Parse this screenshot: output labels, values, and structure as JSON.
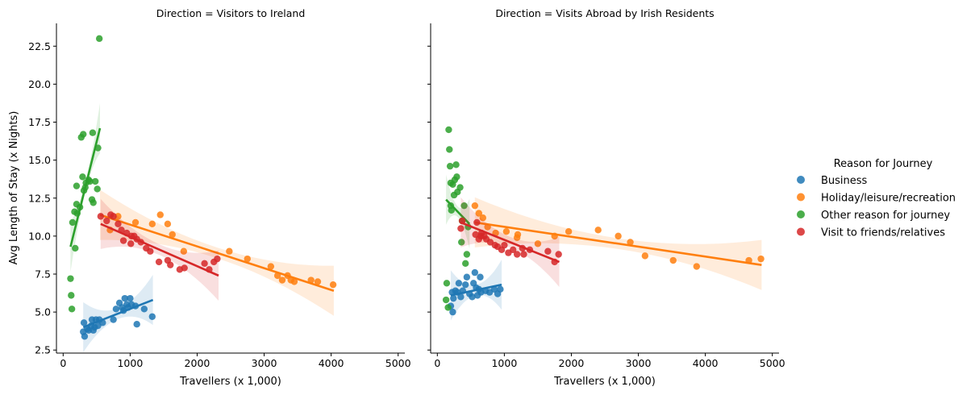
{
  "chart_data": {
    "type": "scatter",
    "legend": {
      "title": "Reason for Journey",
      "placement": "right",
      "entries": [
        {
          "label": "Business",
          "color": "#1f77b4"
        },
        {
          "label": "Holiday/leisure/recreation",
          "color": "#ff7f0e"
        },
        {
          "label": "Other reason for journey",
          "color": "#2ca02c"
        },
        {
          "label": "Visit to friends/relatives",
          "color": "#d62728"
        }
      ]
    },
    "xlim": [
      -100,
      5100
    ],
    "ylim": [
      2.3,
      24.0
    ],
    "xticks": [
      0,
      1000,
      2000,
      3000,
      4000,
      5000
    ],
    "yticks": [
      2.5,
      5.0,
      7.5,
      10.0,
      12.5,
      15.0,
      17.5,
      20.0,
      22.5
    ],
    "ylabel": "Avg Length of Stay (x Nights)",
    "panels": [
      {
        "title": "Direction = Visitors to Ireland",
        "xlabel": "Travellers (x 1,000)",
        "series": [
          {
            "name": "Business",
            "points": [
              [
                300,
                3.7
              ],
              [
                310,
                4.3
              ],
              [
                320,
                3.4
              ],
              [
                360,
                3.9
              ],
              [
                380,
                3.8
              ],
              [
                420,
                4.1
              ],
              [
                430,
                4.5
              ],
              [
                450,
                3.8
              ],
              [
                470,
                4.0
              ],
              [
                490,
                4.5
              ],
              [
                520,
                4.1
              ],
              [
                540,
                4.5
              ],
              [
                590,
                4.3
              ],
              [
                750,
                4.5
              ],
              [
                790,
                5.2
              ],
              [
                840,
                5.6
              ],
              [
                880,
                5.3
              ],
              [
                900,
                5.1
              ],
              [
                920,
                5.9
              ],
              [
                950,
                5.5
              ],
              [
                970,
                5.3
              ],
              [
                1000,
                5.9
              ],
              [
                1020,
                5.5
              ],
              [
                1080,
                5.4
              ],
              [
                1100,
                4.2
              ],
              [
                1210,
                5.2
              ],
              [
                1330,
                4.7
              ]
            ],
            "fit": [
              [
                300,
                4.0
              ],
              [
                1340,
                5.8
              ]
            ]
          },
          {
            "name": "Holiday/leisure/recreation",
            "points": [
              [
                700,
                10.4
              ],
              [
                820,
                11.3
              ],
              [
                1080,
                10.9
              ],
              [
                1330,
                10.8
              ],
              [
                1450,
                11.4
              ],
              [
                1560,
                10.8
              ],
              [
                1630,
                10.1
              ],
              [
                1800,
                9.0
              ],
              [
                2480,
                9.0
              ],
              [
                2750,
                8.5
              ],
              [
                3100,
                8.0
              ],
              [
                3200,
                7.4
              ],
              [
                3270,
                7.1
              ],
              [
                3350,
                7.4
              ],
              [
                3400,
                7.1
              ],
              [
                3450,
                7.0
              ],
              [
                3700,
                7.1
              ],
              [
                3800,
                7.0
              ],
              [
                4030,
                6.8
              ]
            ],
            "fit": [
              [
                550,
                11.4
              ],
              [
                4040,
                6.4
              ]
            ]
          },
          {
            "name": "Other reason for journey",
            "points": [
              [
                110,
                7.2
              ],
              [
                120,
                6.1
              ],
              [
                130,
                5.2
              ],
              [
                140,
                10.9
              ],
              [
                170,
                11.6
              ],
              [
                180,
                9.2
              ],
              [
                200,
                12.1
              ],
              [
                200,
                13.3
              ],
              [
                210,
                11.5
              ],
              [
                250,
                11.9
              ],
              [
                270,
                16.5
              ],
              [
                290,
                13.9
              ],
              [
                300,
                16.7
              ],
              [
                310,
                13.0
              ],
              [
                330,
                13.2
              ],
              [
                340,
                13.5
              ],
              [
                380,
                13.7
              ],
              [
                400,
                13.6
              ],
              [
                440,
                16.8
              ],
              [
                430,
                12.4
              ],
              [
                450,
                12.2
              ],
              [
                480,
                13.6
              ],
              [
                510,
                13.1
              ],
              [
                520,
                15.8
              ],
              [
                540,
                23.0
              ]
            ],
            "fit": [
              [
                110,
                9.3
              ],
              [
                550,
                17.1
              ]
            ]
          },
          {
            "name": "Visit to friends/relatives",
            "points": [
              [
                560,
                11.3
              ],
              [
                650,
                11.0
              ],
              [
                710,
                11.4
              ],
              [
                750,
                11.3
              ],
              [
                820,
                10.8
              ],
              [
                870,
                10.4
              ],
              [
                900,
                9.7
              ],
              [
                950,
                10.2
              ],
              [
                1010,
                9.5
              ],
              [
                1020,
                10.0
              ],
              [
                1060,
                10.0
              ],
              [
                1100,
                9.8
              ],
              [
                1160,
                9.6
              ],
              [
                1240,
                9.2
              ],
              [
                1300,
                9.0
              ],
              [
                1430,
                8.3
              ],
              [
                1560,
                8.4
              ],
              [
                1600,
                8.1
              ],
              [
                1740,
                7.8
              ],
              [
                1810,
                7.9
              ],
              [
                2110,
                8.2
              ],
              [
                2180,
                7.8
              ],
              [
                2250,
                8.3
              ],
              [
                2300,
                8.5
              ]
            ],
            "fit": [
              [
                560,
                10.8
              ],
              [
                2320,
                7.4
              ]
            ]
          }
        ]
      },
      {
        "title": "Direction = Visits Abroad by Irish Residents",
        "xlabel": "Travellers (x 1,000)",
        "series": [
          {
            "name": "Business",
            "points": [
              [
                200,
                5.4
              ],
              [
                220,
                6.3
              ],
              [
                230,
                5.0
              ],
              [
                240,
                5.9
              ],
              [
                270,
                6.4
              ],
              [
                300,
                6.3
              ],
              [
                320,
                6.9
              ],
              [
                350,
                6.0
              ],
              [
                380,
                6.4
              ],
              [
                420,
                6.8
              ],
              [
                440,
                7.3
              ],
              [
                480,
                6.2
              ],
              [
                520,
                6.0
              ],
              [
                540,
                6.9
              ],
              [
                560,
                7.6
              ],
              [
                580,
                6.6
              ],
              [
                600,
                6.1
              ],
              [
                620,
                6.5
              ],
              [
                640,
                7.3
              ],
              [
                650,
                6.3
              ],
              [
                720,
                6.4
              ],
              [
                780,
                6.3
              ],
              [
                850,
                6.5
              ],
              [
                900,
                6.2
              ],
              [
                940,
                6.5
              ]
            ],
            "fit": [
              [
                200,
                6.1
              ],
              [
                960,
                6.8
              ]
            ]
          },
          {
            "name": "Holiday/leisure/recreation",
            "points": [
              [
                560,
                12.0
              ],
              [
                620,
                11.5
              ],
              [
                680,
                11.2
              ],
              [
                750,
                10.6
              ],
              [
                870,
                10.2
              ],
              [
                1030,
                10.3
              ],
              [
                1190,
                9.9
              ],
              [
                1200,
                10.1
              ],
              [
                1500,
                9.5
              ],
              [
                1750,
                10.0
              ],
              [
                1960,
                10.3
              ],
              [
                2400,
                10.4
              ],
              [
                2700,
                10.0
              ],
              [
                2880,
                9.6
              ],
              [
                3100,
                8.7
              ],
              [
                3520,
                8.4
              ],
              [
                3870,
                8.0
              ],
              [
                4650,
                8.4
              ],
              [
                4830,
                8.5
              ]
            ],
            "fit": [
              [
                560,
                10.9
              ],
              [
                4840,
                8.1
              ]
            ]
          },
          {
            "name": "Other reason for journey",
            "points": [
              [
                130,
                5.8
              ],
              [
                140,
                6.9
              ],
              [
                160,
                5.3
              ],
              [
                170,
                17.0
              ],
              [
                180,
                15.7
              ],
              [
                190,
                14.6
              ],
              [
                200,
                13.5
              ],
              [
                200,
                12.0
              ],
              [
                210,
                11.7
              ],
              [
                230,
                13.4
              ],
              [
                250,
                12.7
              ],
              [
                260,
                13.7
              ],
              [
                280,
                14.7
              ],
              [
                290,
                13.9
              ],
              [
                300,
                12.9
              ],
              [
                340,
                13.2
              ],
              [
                360,
                9.6
              ],
              [
                370,
                11.0
              ],
              [
                400,
                12.0
              ],
              [
                420,
                8.2
              ],
              [
                440,
                8.8
              ],
              [
                460,
                10.6
              ]
            ],
            "fit": [
              [
                130,
                12.4
              ],
              [
                480,
                10.8
              ]
            ]
          },
          {
            "name": "Visit to friends/relatives",
            "points": [
              [
                350,
                10.5
              ],
              [
                370,
                11.0
              ],
              [
                570,
                10.1
              ],
              [
                590,
                10.9
              ],
              [
                620,
                9.8
              ],
              [
                650,
                10.0
              ],
              [
                660,
                10.2
              ],
              [
                700,
                10.0
              ],
              [
                730,
                9.8
              ],
              [
                790,
                9.6
              ],
              [
                860,
                9.4
              ],
              [
                900,
                9.3
              ],
              [
                960,
                9.1
              ],
              [
                1000,
                9.4
              ],
              [
                1060,
                8.9
              ],
              [
                1130,
                9.1
              ],
              [
                1190,
                8.8
              ],
              [
                1270,
                9.2
              ],
              [
                1290,
                8.8
              ],
              [
                1380,
                9.1
              ],
              [
                1650,
                9.0
              ],
              [
                1750,
                8.3
              ],
              [
                1810,
                8.8
              ]
            ],
            "fit": [
              [
                350,
                10.9
              ],
              [
                1820,
                8.3
              ]
            ]
          }
        ]
      }
    ]
  }
}
